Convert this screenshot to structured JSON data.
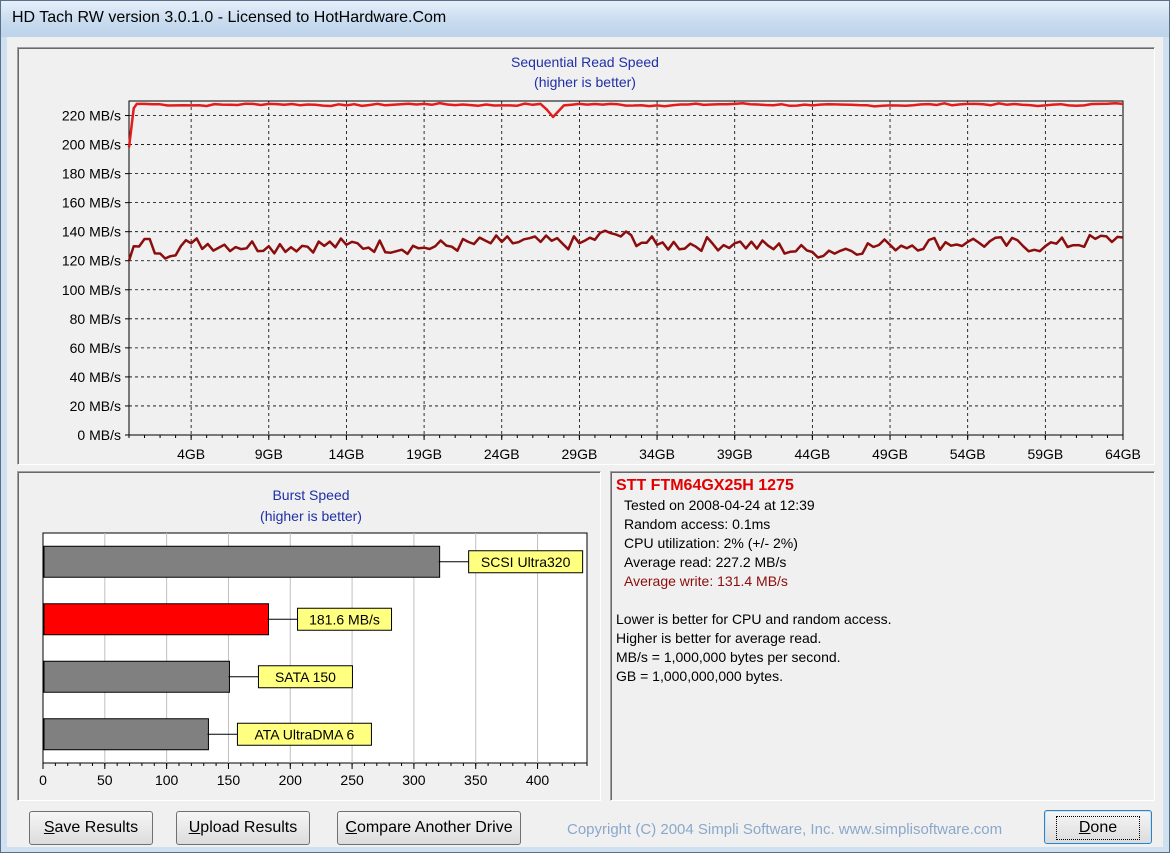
{
  "window": {
    "title": "HD Tach RW version 3.0.1.0 - Licensed to HotHardware.Com"
  },
  "seq_chart": {
    "title": "Sequential Read Speed",
    "subtitle": "(higher is better)",
    "y_ticks": [
      "0 MB/s",
      "20 MB/s",
      "40 MB/s",
      "60 MB/s",
      "80 MB/s",
      "100 MB/s",
      "120 MB/s",
      "140 MB/s",
      "160 MB/s",
      "180 MB/s",
      "200 MB/s",
      "220 MB/s"
    ],
    "x_ticks": [
      "4GB",
      "9GB",
      "14GB",
      "19GB",
      "24GB",
      "29GB",
      "34GB",
      "39GB",
      "44GB",
      "49GB",
      "54GB",
      "59GB",
      "64GB"
    ],
    "read_color": "#e41b1b",
    "write_color": "#8b0d0d"
  },
  "burst_chart": {
    "title": "Burst Speed",
    "subtitle": "(higher is better)",
    "x_ticks": [
      "0",
      "50",
      "100",
      "150",
      "200",
      "250",
      "300",
      "350",
      "400"
    ],
    "bars": [
      {
        "label": "SCSI Ultra320",
        "color": "#808080"
      },
      {
        "label": "181.6 MB/s",
        "color": "#ff0000"
      },
      {
        "label": "SATA 150",
        "color": "#808080"
      },
      {
        "label": "ATA UltraDMA 6",
        "color": "#808080"
      }
    ]
  },
  "chart_data": [
    {
      "type": "line",
      "title": "Sequential Read Speed",
      "subtitle": "(higher is better)",
      "xlabel": "",
      "ylabel": "",
      "x_unit": "GB",
      "y_unit": "MB/s",
      "ylim": [
        0,
        230
      ],
      "xlim": [
        0,
        64
      ],
      "grid": true,
      "series": [
        {
          "name": "Average read",
          "color": "#e41b1b",
          "x": [
            0,
            0.3,
            0.5,
            1,
            4,
            9,
            14,
            19,
            24,
            26.5,
            27.3,
            28,
            29,
            34,
            39,
            44,
            49,
            54,
            59,
            64
          ],
          "y": [
            198,
            225,
            228,
            228,
            227,
            228,
            227,
            228,
            227,
            228,
            219,
            227,
            228,
            227,
            228,
            227,
            227,
            228,
            227,
            228
          ]
        },
        {
          "name": "Average write",
          "color": "#8b0d0d",
          "x": [
            0,
            0.3,
            1,
            2,
            4,
            9,
            14,
            19,
            24,
            29,
            31,
            34,
            39,
            44,
            49,
            54,
            59,
            64
          ],
          "y": [
            120,
            130,
            135,
            125,
            132,
            130,
            131,
            129,
            133,
            132,
            139,
            131,
            132,
            126,
            131,
            133,
            130,
            136
          ]
        }
      ]
    },
    {
      "type": "bar",
      "title": "Burst Speed",
      "subtitle": "(higher is better)",
      "orientation": "horizontal",
      "categories": [
        "SCSI Ultra320",
        "181.6 MB/s",
        "SATA 150",
        "ATA UltraDMA 6"
      ],
      "values": [
        320,
        181.6,
        150,
        133
      ],
      "xlim": [
        0,
        440
      ]
    }
  ],
  "info": {
    "drive": "STT FTM64GX25H 1275",
    "lines": [
      "Tested on 2008-04-24 at 12:39",
      "Random access: 0.1ms",
      "CPU utilization: 2% (+/- 2%)",
      "Average read: 227.2 MB/s"
    ],
    "write_line": "Average write: 131.4 MB/s",
    "notes": [
      "Lower is better for CPU and random access.",
      "Higher is better for average read.",
      "MB/s = 1,000,000 bytes per second.",
      "GB = 1,000,000,000 bytes."
    ]
  },
  "buttons": {
    "save": {
      "u": "S",
      "rest": "ave Results"
    },
    "upload": {
      "u": "U",
      "rest": "pload Results"
    },
    "compare": {
      "u": "C",
      "rest": "ompare Another Drive"
    },
    "done": {
      "u": "D",
      "rest": "one"
    }
  },
  "copyright": "Copyright (C) 2004 Simpli Software, Inc. www.simplisoftware.com"
}
